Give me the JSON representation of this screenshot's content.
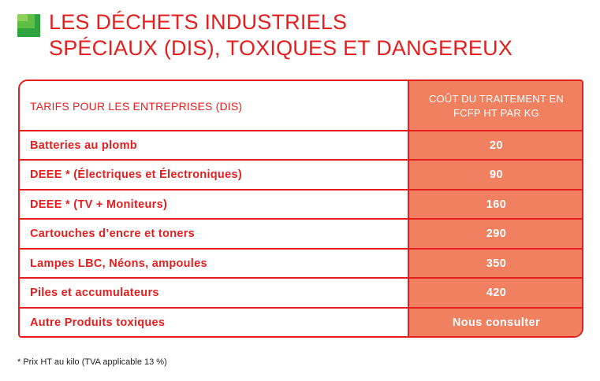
{
  "title": {
    "line1": "LES DÉCHETS INDUSTRIELS",
    "line2": "SPÉCIAUX (DIS), TOXIQUES ET DANGEREUX"
  },
  "colors": {
    "accent_red": "#e41f1f",
    "value_column": "#f0805f",
    "logo_green": "#2ea33f"
  },
  "table": {
    "header": {
      "label": "TARIFS POUR LES ENTREPRISES (DIS)",
      "value_line1": "COÛT DU TRAITEMENT EN",
      "value_line2": "FCFP HT PAR KG"
    },
    "rows": [
      {
        "label": "Batteries au plomb",
        "value": "20"
      },
      {
        "label": "DEEE * (Électriques et Électroniques)",
        "value": "90"
      },
      {
        "label": "DEEE * (TV + Moniteurs)",
        "value": "160"
      },
      {
        "label": "Cartouches d’encre et toners",
        "value": "290"
      },
      {
        "label": "Lampes LBC, Néons, ampoules",
        "value": "350"
      },
      {
        "label": "Piles et accumulateurs",
        "value": "420"
      },
      {
        "label": "Autre Produits toxiques",
        "value": "Nous consulter"
      }
    ]
  },
  "footnote": "* Prix HT au kilo (TVA applicable 13 %)"
}
